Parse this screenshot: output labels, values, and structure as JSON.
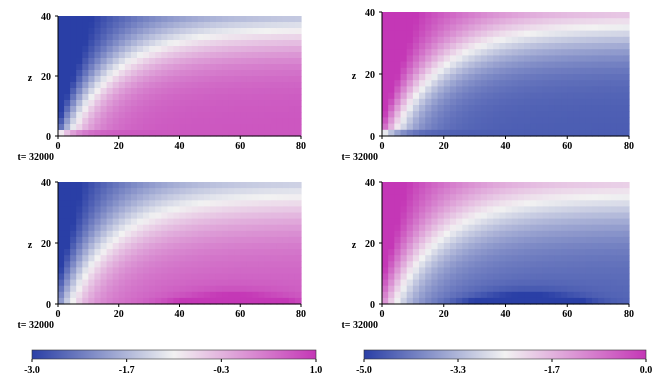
{
  "chart_data": [
    {
      "type": "heatmap",
      "panel": "top-left",
      "xlim": [
        0,
        80
      ],
      "ylim": [
        0,
        40
      ],
      "x_ticks": [
        "0",
        "20",
        "40",
        "60",
        "80"
      ],
      "y_ticks": [
        "0",
        "20",
        "40"
      ],
      "ylabel": "z",
      "time_label": "t= 32000",
      "pattern": "A",
      "bottom_band": 0,
      "colorbar": 0
    },
    {
      "type": "heatmap",
      "panel": "top-right",
      "xlim": [
        0,
        80
      ],
      "ylim": [
        0,
        40
      ],
      "x_ticks": [
        "0",
        "20",
        "40",
        "60",
        "80"
      ],
      "y_ticks": [
        "0",
        "20",
        "40"
      ],
      "ylabel": "z",
      "time_label": "t= 32000",
      "pattern": "B",
      "bottom_band": 0,
      "colorbar": 1
    },
    {
      "type": "heatmap",
      "panel": "bottom-left",
      "xlim": [
        0,
        80
      ],
      "ylim": [
        0,
        40
      ],
      "x_ticks": [
        "0",
        "20",
        "40",
        "60",
        "80"
      ],
      "y_ticks": [
        "0",
        "20",
        "40"
      ],
      "ylabel": "z",
      "time_label": "t= 32000",
      "pattern": "A",
      "bottom_band": 1,
      "colorbar": 0
    },
    {
      "type": "heatmap",
      "panel": "bottom-right",
      "xlim": [
        0,
        80
      ],
      "ylim": [
        0,
        40
      ],
      "x_ticks": [
        "0",
        "20",
        "40",
        "60",
        "80"
      ],
      "y_ticks": [
        "0",
        "20",
        "40"
      ],
      "ylabel": "z",
      "time_label": "t= 32000",
      "pattern": "B",
      "bottom_band": 1,
      "colorbar": 1
    }
  ],
  "colorbars": [
    {
      "range": [
        -3.0,
        1.0
      ],
      "tick_labels": [
        "-3.0",
        "-1.7",
        "-0.3",
        "1.0"
      ],
      "colors": [
        "#2a3fa6",
        "#f2f2f2",
        "#c437b6"
      ]
    },
    {
      "range": [
        -5.0,
        0.0
      ],
      "tick_labels": [
        "-5.0",
        "-3.3",
        "-1.7",
        "0.0"
      ],
      "colors": [
        "#2a3fa6",
        "#f2f2f2",
        "#c437b6"
      ]
    }
  ]
}
